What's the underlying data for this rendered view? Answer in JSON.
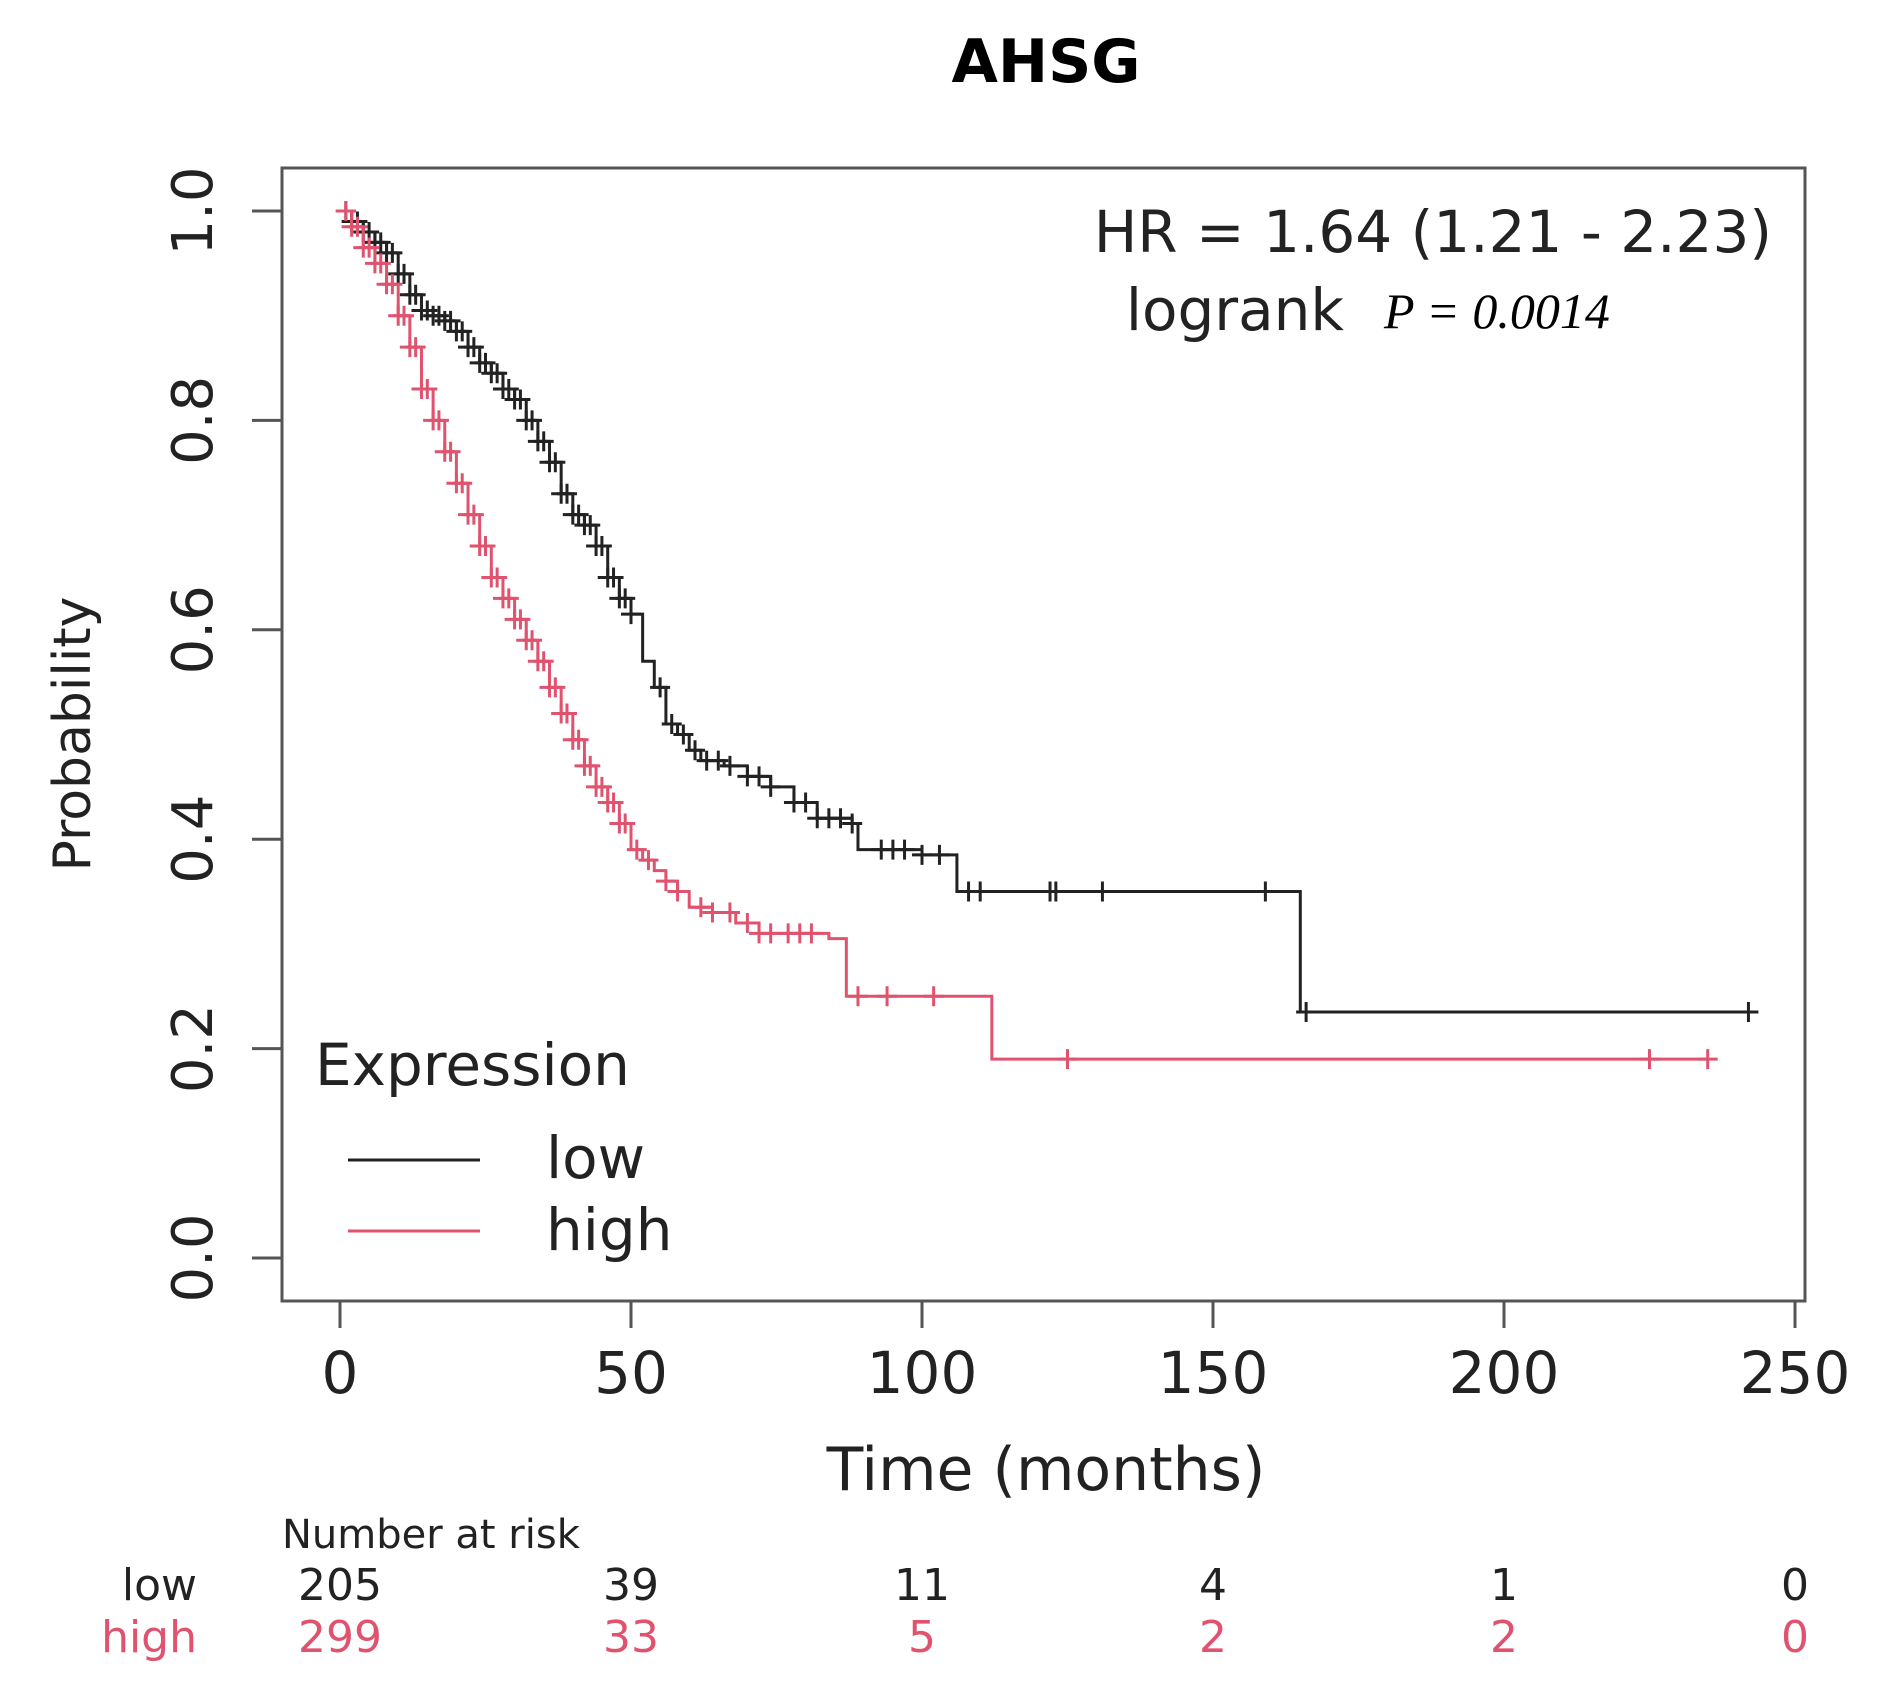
{
  "chart_data": {
    "type": "line",
    "subtype": "kaplan-meier",
    "title": "AHSG",
    "xlabel": "Time (months)",
    "ylabel": "Probability",
    "xlim": [
      0,
      250
    ],
    "ylim": [
      0,
      1
    ],
    "x_ticks": [
      "0",
      "50",
      "100",
      "150",
      "200",
      "250"
    ],
    "y_ticks": [
      "0.0",
      "0.2",
      "0.4",
      "0.6",
      "0.8",
      "1.0"
    ],
    "annotations": {
      "hr": "HR = 1.64 (1.21 - 2.23)",
      "logrank_label": "logrank",
      "p_value": "P = 0.0014"
    },
    "legend": {
      "title": "Expression",
      "position": "bottom-left",
      "entries": [
        "low",
        "high"
      ]
    },
    "series": [
      {
        "name": "low",
        "color": "#222222",
        "steps": [
          [
            0,
            1.0
          ],
          [
            2,
            0.99
          ],
          [
            4,
            0.98
          ],
          [
            6,
            0.97
          ],
          [
            8,
            0.96
          ],
          [
            10,
            0.94
          ],
          [
            12,
            0.92
          ],
          [
            14,
            0.905
          ],
          [
            16,
            0.9
          ],
          [
            18,
            0.895
          ],
          [
            20,
            0.885
          ],
          [
            22,
            0.87
          ],
          [
            24,
            0.855
          ],
          [
            26,
            0.845
          ],
          [
            28,
            0.83
          ],
          [
            30,
            0.82
          ],
          [
            32,
            0.8
          ],
          [
            34,
            0.78
          ],
          [
            36,
            0.76
          ],
          [
            38,
            0.73
          ],
          [
            40,
            0.71
          ],
          [
            42,
            0.7
          ],
          [
            44,
            0.68
          ],
          [
            46,
            0.65
          ],
          [
            48,
            0.63
          ],
          [
            50,
            0.615
          ],
          [
            52,
            0.57
          ],
          [
            54,
            0.545
          ],
          [
            56,
            0.51
          ],
          [
            58,
            0.5
          ],
          [
            60,
            0.485
          ],
          [
            62,
            0.475
          ],
          [
            66,
            0.47
          ],
          [
            70,
            0.46
          ],
          [
            74,
            0.45
          ],
          [
            78,
            0.435
          ],
          [
            82,
            0.42
          ],
          [
            88,
            0.415
          ],
          [
            89,
            0.39
          ],
          [
            100,
            0.385
          ],
          [
            106,
            0.35
          ],
          [
            165,
            0.235
          ],
          [
            243,
            0.235
          ]
        ],
        "censor_times": [
          1,
          2,
          3,
          4,
          5,
          6,
          7,
          8,
          9,
          10,
          11,
          12,
          13,
          14,
          15,
          16,
          17,
          18,
          19,
          20,
          21,
          22,
          23,
          24,
          25,
          26,
          27,
          28,
          29,
          30,
          31,
          32,
          33,
          34,
          35,
          36,
          37,
          38,
          39,
          40,
          41,
          42,
          43,
          44,
          45,
          46,
          47,
          48,
          49,
          50,
          55,
          57,
          59,
          61,
          63,
          65,
          67,
          70,
          72,
          74,
          78,
          80,
          82,
          84,
          86,
          88,
          93,
          95,
          97,
          100,
          103,
          108,
          110,
          122,
          123,
          131,
          159,
          166,
          242
        ],
        "at_risk": [
          "205",
          "39",
          "11",
          "4",
          "1",
          "0"
        ]
      },
      {
        "name": "high",
        "color": "#e0536f",
        "steps": [
          [
            0,
            1.0
          ],
          [
            2,
            0.985
          ],
          [
            4,
            0.965
          ],
          [
            6,
            0.95
          ],
          [
            8,
            0.93
          ],
          [
            10,
            0.9
          ],
          [
            12,
            0.87
          ],
          [
            14,
            0.83
          ],
          [
            16,
            0.8
          ],
          [
            18,
            0.77
          ],
          [
            20,
            0.74
          ],
          [
            22,
            0.71
          ],
          [
            24,
            0.68
          ],
          [
            26,
            0.65
          ],
          [
            28,
            0.63
          ],
          [
            30,
            0.61
          ],
          [
            32,
            0.59
          ],
          [
            34,
            0.57
          ],
          [
            36,
            0.545
          ],
          [
            38,
            0.52
          ],
          [
            40,
            0.495
          ],
          [
            42,
            0.47
          ],
          [
            44,
            0.45
          ],
          [
            46,
            0.435
          ],
          [
            48,
            0.415
          ],
          [
            50,
            0.39
          ],
          [
            52,
            0.38
          ],
          [
            54,
            0.37
          ],
          [
            56,
            0.36
          ],
          [
            58,
            0.35
          ],
          [
            60,
            0.335
          ],
          [
            64,
            0.33
          ],
          [
            68,
            0.32
          ],
          [
            72,
            0.31
          ],
          [
            84,
            0.305
          ],
          [
            87,
            0.25
          ],
          [
            112,
            0.19
          ],
          [
            235,
            0.19
          ]
        ],
        "censor_times": [
          1,
          2,
          3,
          4,
          5,
          6,
          7,
          8,
          9,
          10,
          11,
          12,
          13,
          14,
          15,
          16,
          17,
          18,
          19,
          20,
          21,
          22,
          23,
          24,
          25,
          26,
          27,
          28,
          29,
          30,
          31,
          32,
          33,
          34,
          35,
          36,
          37,
          38,
          39,
          40,
          41,
          42,
          43,
          44,
          45,
          46,
          47,
          48,
          49,
          51,
          53,
          56,
          58,
          62,
          64,
          67,
          70,
          72,
          74,
          77,
          79,
          81,
          89,
          94,
          102,
          125,
          225,
          235
        ],
        "at_risk": [
          "299",
          "33",
          "5",
          "2",
          "2",
          "0"
        ]
      }
    ],
    "risk_table": {
      "title": "Number at risk",
      "rows": [
        "low",
        "high"
      ],
      "times": [
        0,
        50,
        100,
        150,
        200,
        250
      ]
    }
  }
}
